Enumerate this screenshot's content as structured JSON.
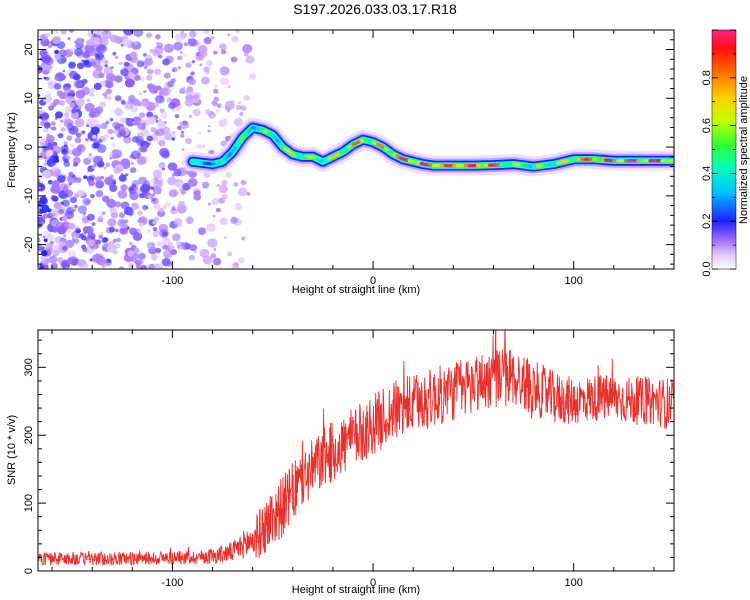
{
  "title": "S197.2026.033.03.17.R18",
  "chart_data": [
    {
      "type": "heatmap",
      "title": "S197.2026.033.03.17.R18",
      "xlabel": "Height of straight line (km)",
      "ylabel": "Frequency (Hz)",
      "xlim": [
        -167,
        150
      ],
      "ylim": [
        -25,
        24
      ],
      "x_ticks": [
        -100,
        0,
        100
      ],
      "y_ticks": [
        20,
        10,
        0,
        -10,
        -20
      ],
      "ridge": {
        "x": [
          -90,
          -80,
          -75,
          -70,
          -65,
          -60,
          -55,
          -50,
          -45,
          -40,
          -35,
          -30,
          -25,
          -20,
          -15,
          -10,
          -5,
          0,
          5,
          10,
          15,
          20,
          25,
          30,
          40,
          50,
          60,
          70,
          80,
          90,
          100,
          110,
          120,
          130,
          140,
          150
        ],
        "frequency": [
          -3,
          -3.5,
          -3,
          -1,
          2,
          4,
          3.5,
          2.5,
          0,
          -1.5,
          -2,
          -2,
          -3,
          -2,
          -1,
          0.5,
          1.5,
          1,
          0,
          -1.5,
          -2.5,
          -3,
          -3.5,
          -3.8,
          -3.8,
          -3.8,
          -3.7,
          -3.5,
          -4,
          -3.5,
          -2.5,
          -2.5,
          -2.8,
          -2.8,
          -2.8,
          -2.8
        ],
        "amplitude": [
          0.4,
          0.35,
          0.4,
          0.45,
          0.5,
          0.45,
          0.55,
          0.5,
          0.6,
          0.7,
          0.65,
          0.6,
          0.55,
          0.7,
          0.75,
          0.8,
          0.75,
          0.7,
          0.75,
          0.85,
          0.9,
          0.95,
          0.95,
          0.95,
          0.95,
          0.95,
          0.9,
          0.6,
          0.55,
          0.6,
          0.8,
          0.9,
          0.95,
          0.95,
          0.95,
          0.9
        ]
      },
      "noise_region_x": [
        -167,
        -60
      ],
      "colorbar": {
        "label": "Normalized spectral amplitude",
        "range": [
          0,
          1
        ],
        "ticks": [
          "0.0",
          "0.2",
          "0.4",
          "0.6",
          "0.8"
        ],
        "colormap": "rainbow"
      }
    },
    {
      "type": "line",
      "xlabel": "Height of straight line (km)",
      "ylabel": "SNR (10 * v/v)",
      "xlim": [
        -167,
        150
      ],
      "ylim": [
        0,
        355
      ],
      "x_ticks": [
        -100,
        0,
        100
      ],
      "y_ticks": [
        0,
        100,
        200,
        300
      ],
      "series": [
        {
          "name": "SNR",
          "color": "#e8302c",
          "x": [
            -167,
            -150,
            -130,
            -110,
            -90,
            -80,
            -70,
            -65,
            -60,
            -55,
            -50,
            -45,
            -40,
            -35,
            -30,
            -25,
            -20,
            -15,
            -10,
            -5,
            0,
            10,
            20,
            30,
            40,
            50,
            60,
            70,
            80,
            90,
            100,
            110,
            120,
            130,
            140,
            150
          ],
          "mean": [
            18,
            18,
            18,
            19,
            20,
            22,
            28,
            38,
            45,
            60,
            80,
            95,
            115,
            135,
            150,
            165,
            175,
            185,
            195,
            205,
            215,
            235,
            245,
            255,
            265,
            275,
            285,
            285,
            270,
            255,
            250,
            255,
            255,
            250,
            250,
            245
          ],
          "spread": [
            10,
            10,
            10,
            10,
            10,
            12,
            15,
            20,
            30,
            40,
            45,
            45,
            45,
            45,
            45,
            45,
            45,
            45,
            45,
            45,
            45,
            45,
            45,
            45,
            45,
            45,
            45,
            45,
            40,
            40,
            35,
            35,
            35,
            35,
            35,
            40
          ]
        }
      ]
    }
  ]
}
